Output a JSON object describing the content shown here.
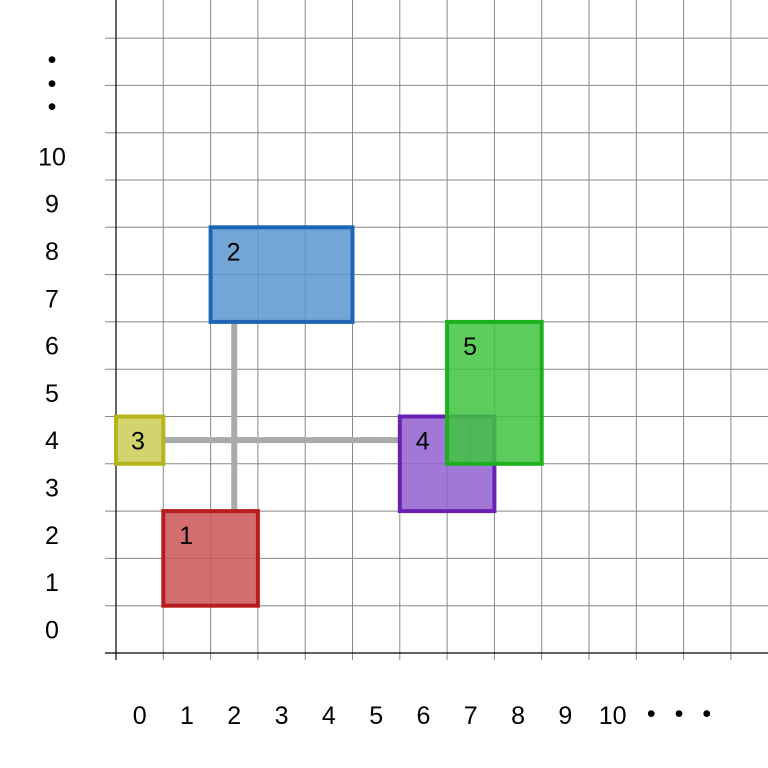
{
  "x_labels": [
    "0",
    "1",
    "2",
    "3",
    "4",
    "5",
    "6",
    "7",
    "8",
    "9",
    "10"
  ],
  "y_labels": [
    "0",
    "1",
    "2",
    "3",
    "4",
    "5",
    "6",
    "7",
    "8",
    "9",
    "10"
  ],
  "x_overflow": "• • •",
  "y_overflow": "•",
  "rectangles": [
    {
      "label": "1",
      "x": 1,
      "y": 1,
      "w": 2,
      "h": 2,
      "fill": "#cd5555",
      "stroke": "#b81c1c"
    },
    {
      "label": "2",
      "x": 2,
      "y": 7,
      "w": 3,
      "h": 2,
      "fill": "#5b96d0",
      "stroke": "#1c66b5"
    },
    {
      "label": "3",
      "x": 0,
      "y": 4,
      "w": 1,
      "h": 1,
      "fill": "#cccc55",
      "stroke": "#b5b51c"
    },
    {
      "label": "4",
      "x": 6,
      "y": 3,
      "w": 2,
      "h": 2,
      "fill": "#9260d0",
      "stroke": "#6a1fb5"
    },
    {
      "label": "5",
      "x": 7,
      "y": 4,
      "w": 2,
      "h": 3,
      "fill": "#40c440",
      "stroke": "#1cb01c"
    }
  ],
  "connectors": [
    {
      "from": "1",
      "to": "2",
      "x1": 2.5,
      "y1": 3,
      "x2": 2.5,
      "y2": 7
    },
    {
      "from": "3",
      "to": "4",
      "x1": 1,
      "y1": 4.5,
      "x2": 6,
      "y2": 4.5
    },
    {
      "from": "4",
      "to": "5",
      "x1": 7.5,
      "y1": 4,
      "x2": 7.5,
      "y2": 5
    }
  ],
  "colors": {
    "grid": "#888888",
    "connector": "#aaaaaa",
    "axis": "#000000"
  }
}
